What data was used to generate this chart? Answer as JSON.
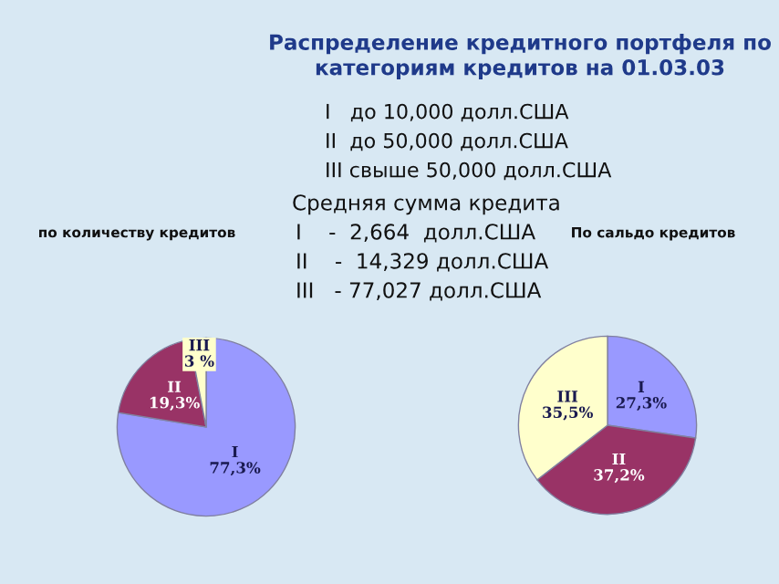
{
  "chart_data": [
    {
      "type": "pie",
      "title": "по количеству кредитов",
      "annotations": [
        "Распределение кредитного портфеля по\nкатегориям кредитов на 01.03.03",
        "I   до 10,000 долл.США",
        "II  до 50,000 долл.США",
        "III свыше 50,000 долл.США",
        "Средняя сумма кредита",
        "I    -  2,664  долл.США",
        "II    -  14,329 долл.США",
        "III   - 77,027 долл.США"
      ],
      "categories": [
        "I",
        "II",
        "III"
      ],
      "values": [
        77.3,
        19.3,
        3
      ],
      "value_labels": [
        "77,3%",
        "19,3%",
        "3 %"
      ],
      "colors": [
        "#9999ff",
        "#993366",
        "#ffffcc"
      ]
    },
    {
      "type": "pie",
      "title": "По сальдо кредитов",
      "categories": [
        "I",
        "II",
        "III"
      ],
      "values": [
        27.3,
        37.2,
        35.5
      ],
      "value_labels": [
        "27,3%",
        "37,2%",
        "35,5%"
      ],
      "colors": [
        "#9999ff",
        "#993366",
        "#ffffcc"
      ]
    }
  ]
}
